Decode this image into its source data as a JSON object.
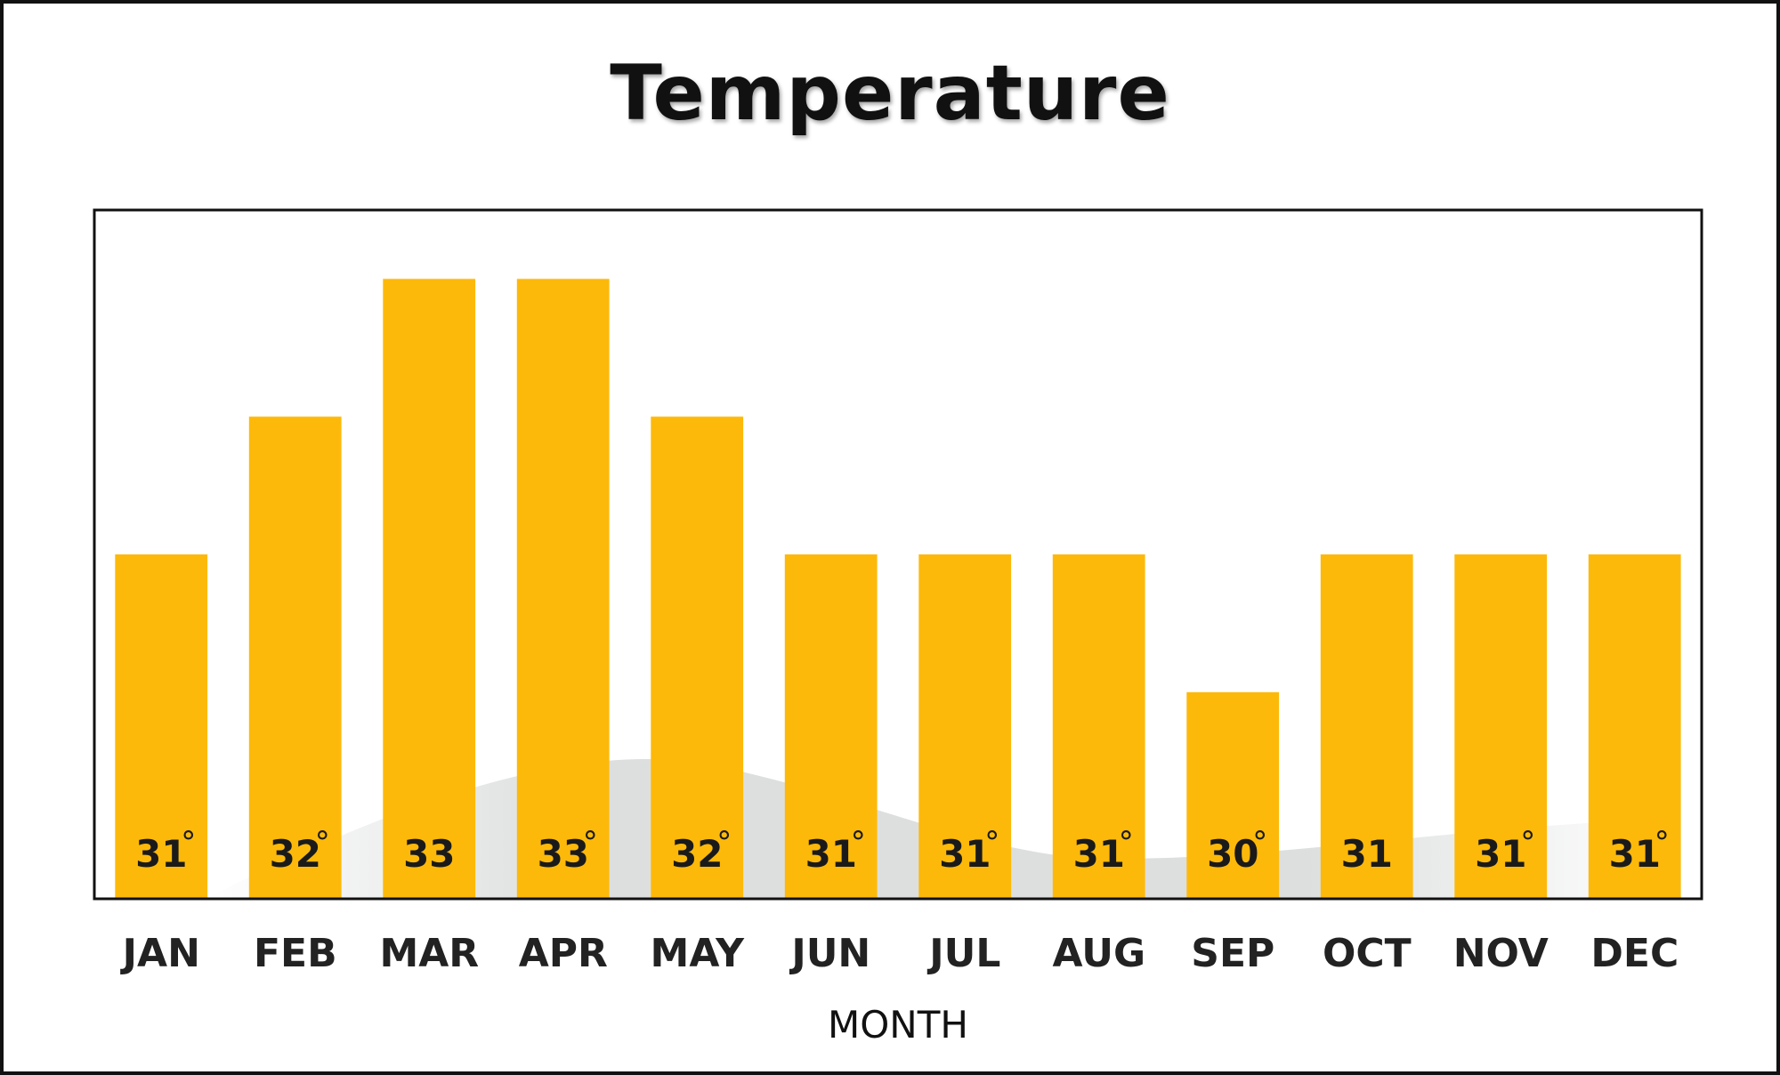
{
  "chart_data": {
    "type": "bar",
    "title": "Temperature",
    "xlabel": "MONTH",
    "ylabel": "",
    "categories": [
      "JAN",
      "FEB",
      "MAR",
      "APR",
      "MAY",
      "JUN",
      "JUL",
      "AUG",
      "SEP",
      "OCT",
      "NOV",
      "DEC"
    ],
    "values": [
      31,
      32,
      33,
      33,
      32,
      31,
      31,
      31,
      30,
      31,
      31,
      31
    ],
    "data_labels": [
      "31",
      "32",
      "33",
      "33",
      "32",
      "31",
      "31",
      "31",
      "30",
      "31",
      "31",
      "31"
    ],
    "label_has_degree": [
      true,
      true,
      false,
      true,
      true,
      true,
      true,
      true,
      true,
      false,
      true,
      true
    ],
    "degree_symbol": "°",
    "ylim": [
      28.5,
      33.5
    ],
    "grid": false,
    "legend": "none",
    "bar_color": "#FDB90A"
  }
}
